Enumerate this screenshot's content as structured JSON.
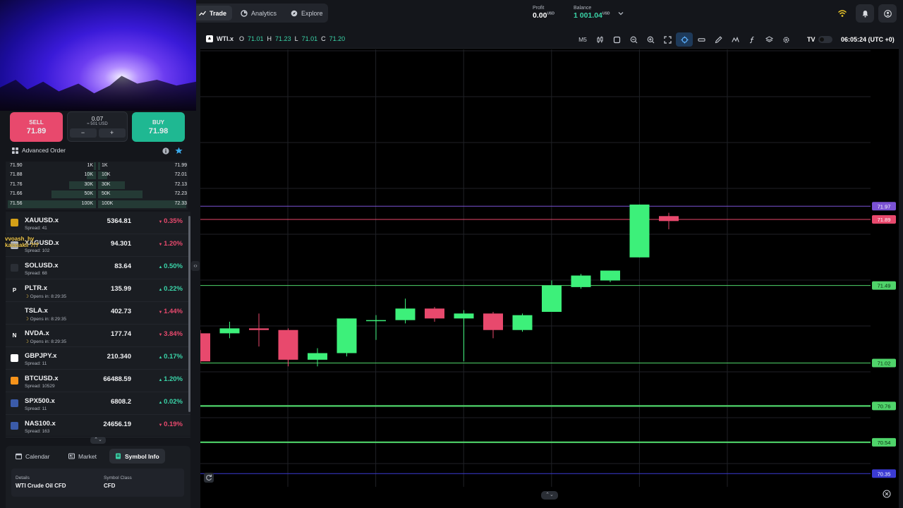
{
  "nav": {
    "tabs": [
      {
        "label": "Trade",
        "icon": "chart-line-icon",
        "active": true
      },
      {
        "label": "Analytics",
        "icon": "analytics-icon",
        "active": false
      },
      {
        "label": "Explore",
        "icon": "compass-icon",
        "active": false
      }
    ]
  },
  "header": {
    "profit_label": "Profit",
    "profit_value": "0.00",
    "profit_currency": "USD",
    "balance_label": "Balance",
    "balance_value": "1 001.04",
    "balance_currency": "USD"
  },
  "trade": {
    "sell_label": "SELL",
    "sell_price": "71.89",
    "buy_label": "BUY",
    "buy_price": "71.98",
    "quantity": "0.07",
    "quantity_usd": "≈ 501 USD",
    "minus": "−",
    "plus": "+",
    "advanced_order": "Advanced Order"
  },
  "depth": [
    {
      "bid": "71.90",
      "bid_size": "1K",
      "ask_size": "1K",
      "ask": "71.99",
      "fill": 0.02
    },
    {
      "bid": "71.88",
      "bid_size": "10K",
      "ask_size": "10K",
      "ask": "72.01",
      "fill": 0.1
    },
    {
      "bid": "71.76",
      "bid_size": "30K",
      "ask_size": "30K",
      "ask": "72.13",
      "fill": 0.3
    },
    {
      "bid": "71.66",
      "bid_size": "50K",
      "ask_size": "50K",
      "ask": "72.23",
      "fill": 0.5
    },
    {
      "bid": "71.56",
      "bid_size": "100K",
      "ask_size": "100K",
      "ask": "72.33",
      "fill": 1.0
    }
  ],
  "watchlist": [
    {
      "symbol": "XAUUSD.x",
      "sub": "Spread: 41",
      "price": "5364.81",
      "change": "0.35%",
      "dir": "down",
      "icon": "gold-icon",
      "icon_color": "#d4a017"
    },
    {
      "symbol": "XAGUSD.x",
      "sub": "Spread: 102",
      "price": "94.301",
      "change": "1.20%",
      "dir": "down",
      "icon": "silver-icon",
      "icon_color": "#c0c4cc"
    },
    {
      "symbol": "SOLUSD.x",
      "sub": "Spread: 68",
      "price": "83.64",
      "change": "0.50%",
      "dir": "up",
      "icon": "solana-icon",
      "icon_color": "#2a2e35"
    },
    {
      "symbol": "PLTR.x",
      "sub": "Opens in: 8:29:35",
      "price": "135.99",
      "change": "0.22%",
      "dir": "up",
      "icon": "palantir-icon",
      "icon_color": "#1a1d22",
      "glyph": "P"
    },
    {
      "symbol": "TSLA.x",
      "sub": "Opens in: 8:29:35",
      "price": "402.73",
      "change": "1.44%",
      "dir": "down",
      "icon": "tesla-icon",
      "icon_color": "#1a1d22"
    },
    {
      "symbol": "NVDA.x",
      "sub": "Opens in: 8:29:35",
      "price": "177.74",
      "change": "3.84%",
      "dir": "down",
      "icon": "nvidia-icon",
      "icon_color": "#1a1d22",
      "glyph": "N"
    },
    {
      "symbol": "GBPJPY.x",
      "sub": "Spread: 11",
      "price": "210.340",
      "change": "0.17%",
      "dir": "up",
      "icon": "flag-jp-icon",
      "icon_color": "#ffffff"
    },
    {
      "symbol": "BTCUSD.x",
      "sub": "Spread: 10529",
      "price": "66488.59",
      "change": "1.20%",
      "dir": "up",
      "icon": "bitcoin-icon",
      "icon_color": "#f7931a"
    },
    {
      "symbol": "SPX500.x",
      "sub": "Spread: 11",
      "price": "6808.2",
      "change": "0.02%",
      "dir": "up",
      "icon": "flag-us-icon",
      "icon_color": "#3b5ba9"
    },
    {
      "symbol": "NAS100.x",
      "sub": "Spread: 163",
      "price": "24656.19",
      "change": "0.19%",
      "dir": "down",
      "icon": "flag-us-icon",
      "icon_color": "#3b5ba9"
    }
  ],
  "stream_overlay": {
    "line1": "vvoash_hy",
    "line2": "kaiasakii ?!?"
  },
  "bottom_tabs": [
    {
      "label": "Calendar",
      "icon": "calendar-icon",
      "active": false
    },
    {
      "label": "Market",
      "icon": "newspaper-icon",
      "active": false
    },
    {
      "label": "Symbol Info",
      "icon": "info-doc-icon",
      "active": true
    }
  ],
  "symbol_info": {
    "details_label": "Details",
    "details_value": "WTI Crude Oil CFD",
    "class_label": "Symbol Class",
    "class_value": "CFD"
  },
  "chart_header": {
    "symbol": "WTI.x",
    "o_label": "O",
    "o": "71.01",
    "h_label": "H",
    "h": "71.23",
    "l_label": "L",
    "l": "71.01",
    "c_label": "C",
    "c": "71.20",
    "timeframe": "M5",
    "clock": "06:05:24 (UTC +0)"
  },
  "chart_data": {
    "type": "candlestick",
    "symbol": "WTI.x",
    "timeframe": "M5",
    "ylim": [
      70.27,
      72.92
    ],
    "candles": [
      {
        "o": 71.2,
        "h": 71.22,
        "l": 71.02,
        "c": 71.03
      },
      {
        "o": 71.2,
        "h": 71.27,
        "l": 71.17,
        "c": 71.23
      },
      {
        "o": 71.23,
        "h": 71.32,
        "l": 71.12,
        "c": 71.22
      },
      {
        "o": 71.22,
        "h": 71.23,
        "l": 71.0,
        "c": 71.04
      },
      {
        "o": 71.04,
        "h": 71.11,
        "l": 71.0,
        "c": 71.08
      },
      {
        "o": 71.08,
        "h": 71.29,
        "l": 71.06,
        "c": 71.29
      },
      {
        "o": 71.28,
        "h": 71.31,
        "l": 71.16,
        "c": 71.28
      },
      {
        "o": 71.28,
        "h": 71.41,
        "l": 71.26,
        "c": 71.35
      },
      {
        "o": 71.35,
        "h": 71.36,
        "l": 71.27,
        "c": 71.29
      },
      {
        "o": 71.29,
        "h": 71.34,
        "l": 71.03,
        "c": 71.32
      },
      {
        "o": 71.32,
        "h": 71.33,
        "l": 71.17,
        "c": 71.22
      },
      {
        "o": 71.22,
        "h": 71.32,
        "l": 71.21,
        "c": 71.31
      },
      {
        "o": 71.33,
        "h": 71.52,
        "l": 71.33,
        "c": 71.49
      },
      {
        "o": 71.48,
        "h": 71.56,
        "l": 71.47,
        "c": 71.55
      },
      {
        "o": 71.52,
        "h": 71.58,
        "l": 71.51,
        "c": 71.58
      },
      {
        "o": 71.66,
        "h": 71.98,
        "l": 71.66,
        "c": 71.98
      },
      {
        "o": 71.91,
        "h": 71.93,
        "l": 71.83,
        "c": 71.88
      }
    ],
    "levels": [
      {
        "price": "71.97",
        "color": "#7b52d4"
      },
      {
        "price": "71.89",
        "color": "#e8496d"
      },
      {
        "price": "71.49",
        "color": "#4fd46a"
      },
      {
        "price": "71.02",
        "color": "#4fd46a"
      },
      {
        "price": "70.76",
        "color": "#4fd46a"
      },
      {
        "price": "70.54",
        "color": "#4fd46a"
      },
      {
        "price": "70.35",
        "color": "#3b3bd4"
      }
    ],
    "up_color": "#3df07a",
    "down_color": "#e8496d",
    "grid": true
  }
}
